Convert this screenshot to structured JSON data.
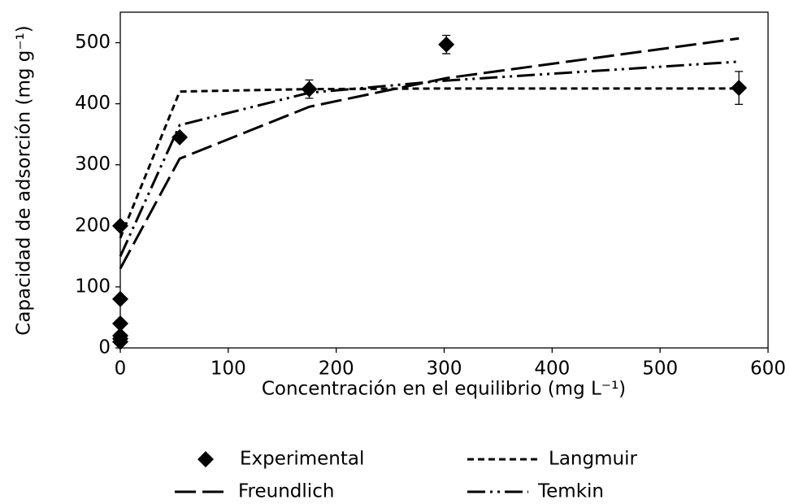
{
  "chart_data": {
    "type": "scatter",
    "x_label": "Concentración en el equilibrio (mg L⁻¹)",
    "y_label": "Capacidad de adsorción (mg g⁻¹)",
    "xlim": [
      0,
      600
    ],
    "xticks": [
      0,
      100,
      200,
      300,
      400,
      500,
      600
    ],
    "ylim": [
      0,
      550
    ],
    "yticks": [
      0,
      100,
      200,
      300,
      400,
      500
    ],
    "series": [
      {
        "name": "Experimental",
        "type": "scatter",
        "color": "#000000",
        "x": [
          0,
          0,
          0,
          0,
          0,
          0,
          55,
          175,
          302,
          573
        ],
        "values": [
          10,
          15,
          20,
          40,
          80,
          200,
          345,
          424,
          497,
          426
        ],
        "errors": [
          0,
          0,
          0,
          0,
          0,
          0,
          5,
          15,
          15,
          27
        ]
      },
      {
        "name": "Langmuir",
        "type": "line",
        "dash": "short",
        "color": "#000000",
        "x": [
          0,
          55,
          175,
          302,
          573
        ],
        "values": [
          180,
          420,
          424,
          425,
          425
        ]
      },
      {
        "name": "Freundlich",
        "type": "line",
        "dash": "long",
        "color": "#000000",
        "x": [
          0,
          55,
          175,
          302,
          573
        ],
        "values": [
          130,
          310,
          395,
          442,
          507
        ]
      },
      {
        "name": "Temkin",
        "type": "line",
        "dash": "dash-dot-dot",
        "color": "#000000",
        "x": [
          0,
          55,
          175,
          302,
          573
        ],
        "values": [
          150,
          365,
          418,
          438,
          469
        ]
      }
    ]
  }
}
